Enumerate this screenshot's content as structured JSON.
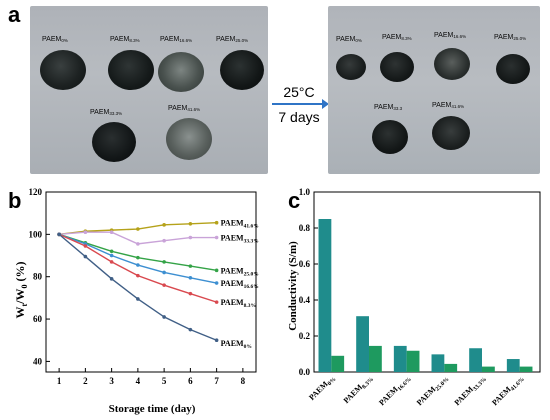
{
  "panel_letters": {
    "a": "a",
    "b": "b",
    "c": "c"
  },
  "panel_a": {
    "arrow_temp": "25°C",
    "arrow_days": "7 days",
    "before_labels": [
      {
        "base": "PAEM",
        "sub": "0%"
      },
      {
        "base": "PAEM",
        "sub": "8.3%"
      },
      {
        "base": "PAEM",
        "sub": "16.6%"
      },
      {
        "base": "PAEM",
        "sub": "25.0%"
      },
      {
        "base": "PAEM",
        "sub": "33.3%"
      },
      {
        "base": "PAEM",
        "sub": "41.6%"
      }
    ],
    "after_labels": [
      {
        "base": "PAEM",
        "sub": "0%"
      },
      {
        "base": "PAEM",
        "sub": "8.3%"
      },
      {
        "base": "PAEM",
        "sub": "16.6%"
      },
      {
        "base": "PAEM",
        "sub": "25.0%"
      },
      {
        "base": "PAEM",
        "sub": "33.3"
      },
      {
        "base": "PAEM",
        "sub": "41.6%"
      }
    ]
  },
  "chart_data": [
    {
      "type": "line",
      "ylabel_base": "W",
      "ylabel_sub1": "t",
      "ylabel_mid": "/W",
      "ylabel_sub2": "0",
      "ylabel_end": " (%)",
      "xlabel": "Storage time (day)",
      "xlim": [
        0.5,
        8.5
      ],
      "ylim": [
        35,
        120
      ],
      "xticks": [
        1,
        2,
        3,
        4,
        5,
        6,
        7,
        8
      ],
      "yticks": [
        40,
        60,
        80,
        100,
        120
      ],
      "x": [
        1,
        2,
        3,
        4,
        5,
        6,
        7
      ],
      "series": [
        {
          "name": "PAEM41.6%",
          "base": "PAEM",
          "sub": "41.6%",
          "color": "#b5a21a",
          "values": [
            100,
            101.5,
            102,
            102.5,
            104.5,
            105,
            105.5
          ]
        },
        {
          "name": "PAEM33.3%",
          "base": "PAEM",
          "sub": "33.3%",
          "color": "#c9a3d8",
          "values": [
            100,
            101,
            101,
            95.5,
            97,
            98.5,
            98.5
          ]
        },
        {
          "name": "PAEM25.0%",
          "base": "PAEM",
          "sub": "25.0%",
          "color": "#34a347",
          "values": [
            100,
            96,
            92,
            89,
            87,
            85,
            83
          ]
        },
        {
          "name": "PAEM16.6%",
          "base": "PAEM",
          "sub": "16.6%",
          "color": "#3d8fd1",
          "values": [
            100,
            95.5,
            90,
            85.5,
            82,
            79.5,
            77
          ]
        },
        {
          "name": "PAEM8.3%",
          "base": "PAEM",
          "sub": "8.3%",
          "color": "#d9494f",
          "values": [
            100,
            94.5,
            87,
            80.5,
            76,
            72,
            68
          ]
        },
        {
          "name": "PAEM0%",
          "base": "PAEM",
          "sub": "0%",
          "color": "#405f86",
          "values": [
            100,
            89.5,
            79,
            69.5,
            61,
            55,
            50
          ]
        }
      ]
    },
    {
      "type": "bar",
      "ylabel": "Conductivity (S/m)",
      "ylim": [
        0,
        1.0
      ],
      "yticks": [
        "0.0",
        "0.2",
        "0.4",
        "0.6",
        "0.8",
        "1.0"
      ],
      "categories": [
        {
          "base": "PAEM",
          "sub": "0%"
        },
        {
          "base": "PAEM",
          "sub": "8.3%"
        },
        {
          "base": "PAEM",
          "sub": "16.6%"
        },
        {
          "base": "PAEM",
          "sub": "25.0%"
        },
        {
          "base": "PAEM",
          "sub": "33.3%"
        },
        {
          "base": "PAEM",
          "sub": "41.6%"
        }
      ],
      "series": [
        {
          "color": "#1f8c8c",
          "values": [
            0.85,
            0.31,
            0.145,
            0.098,
            0.132,
            0.072
          ]
        },
        {
          "color": "#1e9a5f",
          "values": [
            0.09,
            0.145,
            0.118,
            0.045,
            0.03,
            0.03
          ]
        }
      ]
    }
  ]
}
